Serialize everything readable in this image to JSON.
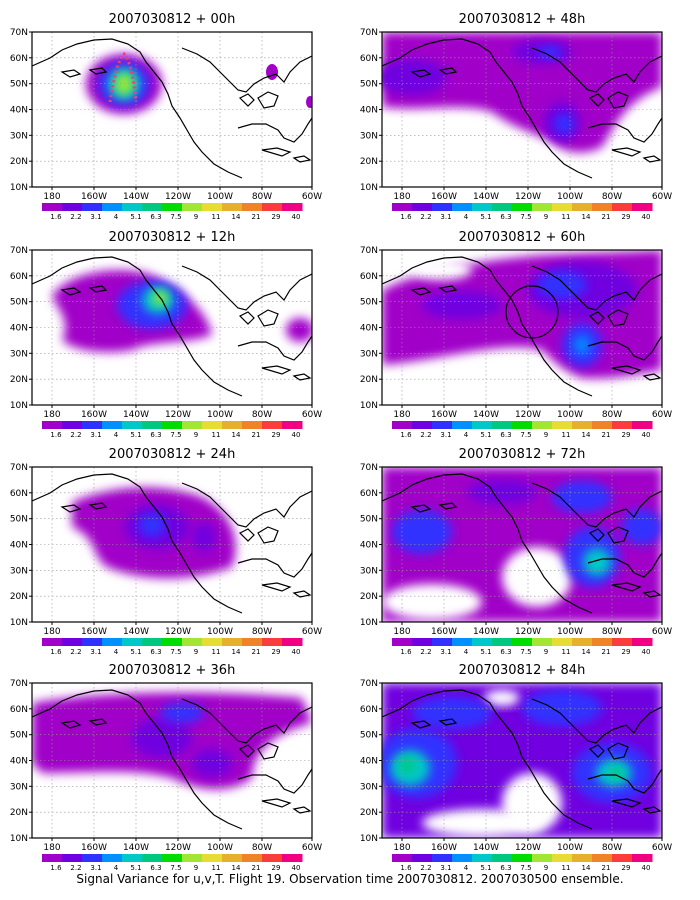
{
  "figure": {
    "caption": "Signal Variance for u,v,T. Flight 19. Observation time 2007030812. 2007030500 ensemble."
  },
  "axes": {
    "lon_labels": [
      "180",
      "160W",
      "140W",
      "120W",
      "100W",
      "80W",
      "60W"
    ],
    "lat_labels": [
      "10N",
      "20N",
      "30N",
      "40N",
      "50N",
      "60N",
      "70N"
    ]
  },
  "colorbar": {
    "levels": [
      "1.6",
      "2.2",
      "3.1",
      "4",
      "5.1",
      "6.3",
      "7.5",
      "9",
      "11",
      "14",
      "21",
      "29",
      "40"
    ],
    "colors": [
      "#a000c8",
      "#7000e0",
      "#3030ff",
      "#0090ff",
      "#00c8c8",
      "#00c880",
      "#00dc00",
      "#a0e632",
      "#e6dc32",
      "#e6af2d",
      "#f08228",
      "#fa3c3c",
      "#f00082"
    ]
  },
  "panels": [
    {
      "title": "2007030812 + 00h"
    },
    {
      "title": "2007030812 + 48h"
    },
    {
      "title": "2007030812 + 12h"
    },
    {
      "title": "2007030812 + 60h"
    },
    {
      "title": "2007030812 + 24h"
    },
    {
      "title": "2007030812 + 72h"
    },
    {
      "title": "2007030812 + 36h"
    },
    {
      "title": "2007030812 + 84h"
    }
  ]
}
